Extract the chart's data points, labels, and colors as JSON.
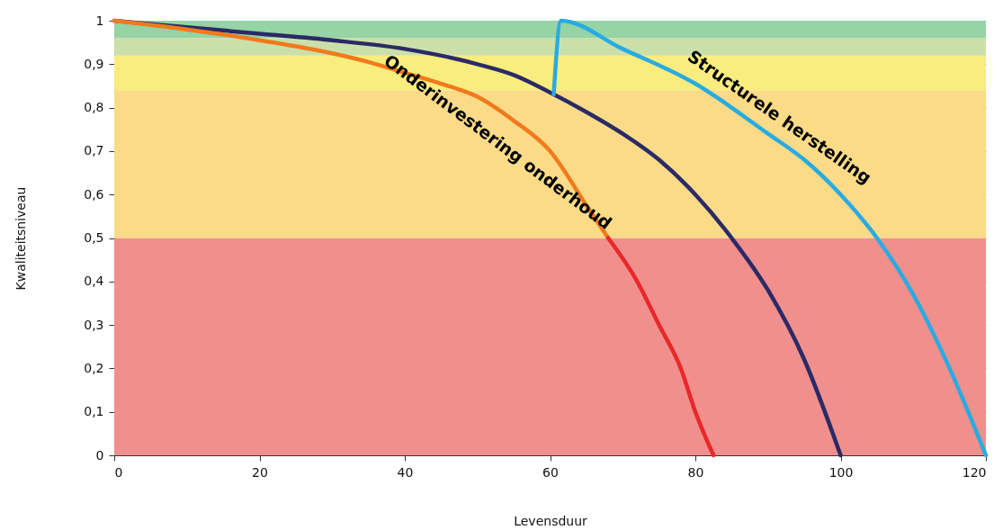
{
  "chart_data": {
    "type": "line",
    "xlabel": "Levensduur",
    "ylabel": "Kwaliteitsniveau",
    "xlim": [
      0,
      120
    ],
    "xticks": [
      0,
      20,
      40,
      60,
      80,
      100,
      120
    ],
    "ylim": [
      0,
      1
    ],
    "yticks": [
      {
        "value": 0,
        "label": "0"
      },
      {
        "value": 0.1,
        "label": "0,1"
      },
      {
        "value": 0.2,
        "label": "0,2"
      },
      {
        "value": 0.3,
        "label": "0,3"
      },
      {
        "value": 0.4,
        "label": "0,4"
      },
      {
        "value": 0.5,
        "label": "0,5"
      },
      {
        "value": 0.6,
        "label": "0,6"
      },
      {
        "value": 0.7,
        "label": "0,7"
      },
      {
        "value": 0.8,
        "label": "0,8"
      },
      {
        "value": 0.9,
        "label": "0,9"
      },
      {
        "value": 1,
        "label": "1"
      }
    ],
    "grid": "y",
    "line_style": "solid",
    "marker": "none",
    "bands": [
      {
        "axis": "y",
        "from": 0,
        "to": 0.5,
        "color": "#f08f8c"
      },
      {
        "axis": "y",
        "from": 0.5,
        "to": 0.84,
        "color": "#fbdb88"
      },
      {
        "axis": "y",
        "from": 0.84,
        "to": 0.92,
        "color": "#f8ed7e"
      },
      {
        "axis": "y",
        "from": 0.92,
        "to": 0.96,
        "color": "#cbe0a8"
      },
      {
        "axis": "y",
        "from": 0.96,
        "to": 1,
        "color": "#96d3a5"
      }
    ],
    "series": [
      {
        "color": "#2b2a66",
        "x": [
          0,
          10,
          20,
          30,
          40,
          50,
          55,
          60,
          65,
          70,
          75,
          80,
          85,
          90,
          95,
          100
        ],
        "values": [
          1,
          0.985,
          0.97,
          0.955,
          0.935,
          0.9,
          0.875,
          0.835,
          0.79,
          0.74,
          0.68,
          0.6,
          0.5,
          0.38,
          0.22,
          0
        ]
      },
      {
        "name": "Onderinvestering onderhoud",
        "color": "#f07a1c",
        "x": [
          0,
          10,
          20,
          30,
          35,
          40,
          45,
          50,
          55,
          60,
          65,
          68
        ],
        "values": [
          1,
          0.98,
          0.955,
          0.925,
          0.905,
          0.88,
          0.855,
          0.825,
          0.77,
          0.7,
          0.575,
          0.5
        ]
      },
      {
        "color": "#e8282a",
        "x": [
          68,
          72,
          75,
          78,
          80,
          82.5
        ],
        "values": [
          0.5,
          0.4,
          0.3,
          0.2,
          0.1,
          0
        ]
      },
      {
        "name": "Structurele herstelling",
        "color": "#29abe2",
        "x": [
          60.5,
          61.5,
          70,
          80,
          90,
          95,
          100,
          105,
          110,
          115,
          120
        ],
        "values": [
          0.83,
          1,
          0.935,
          0.855,
          0.74,
          0.68,
          0.6,
          0.5,
          0.37,
          0.2,
          0
        ]
      }
    ]
  }
}
